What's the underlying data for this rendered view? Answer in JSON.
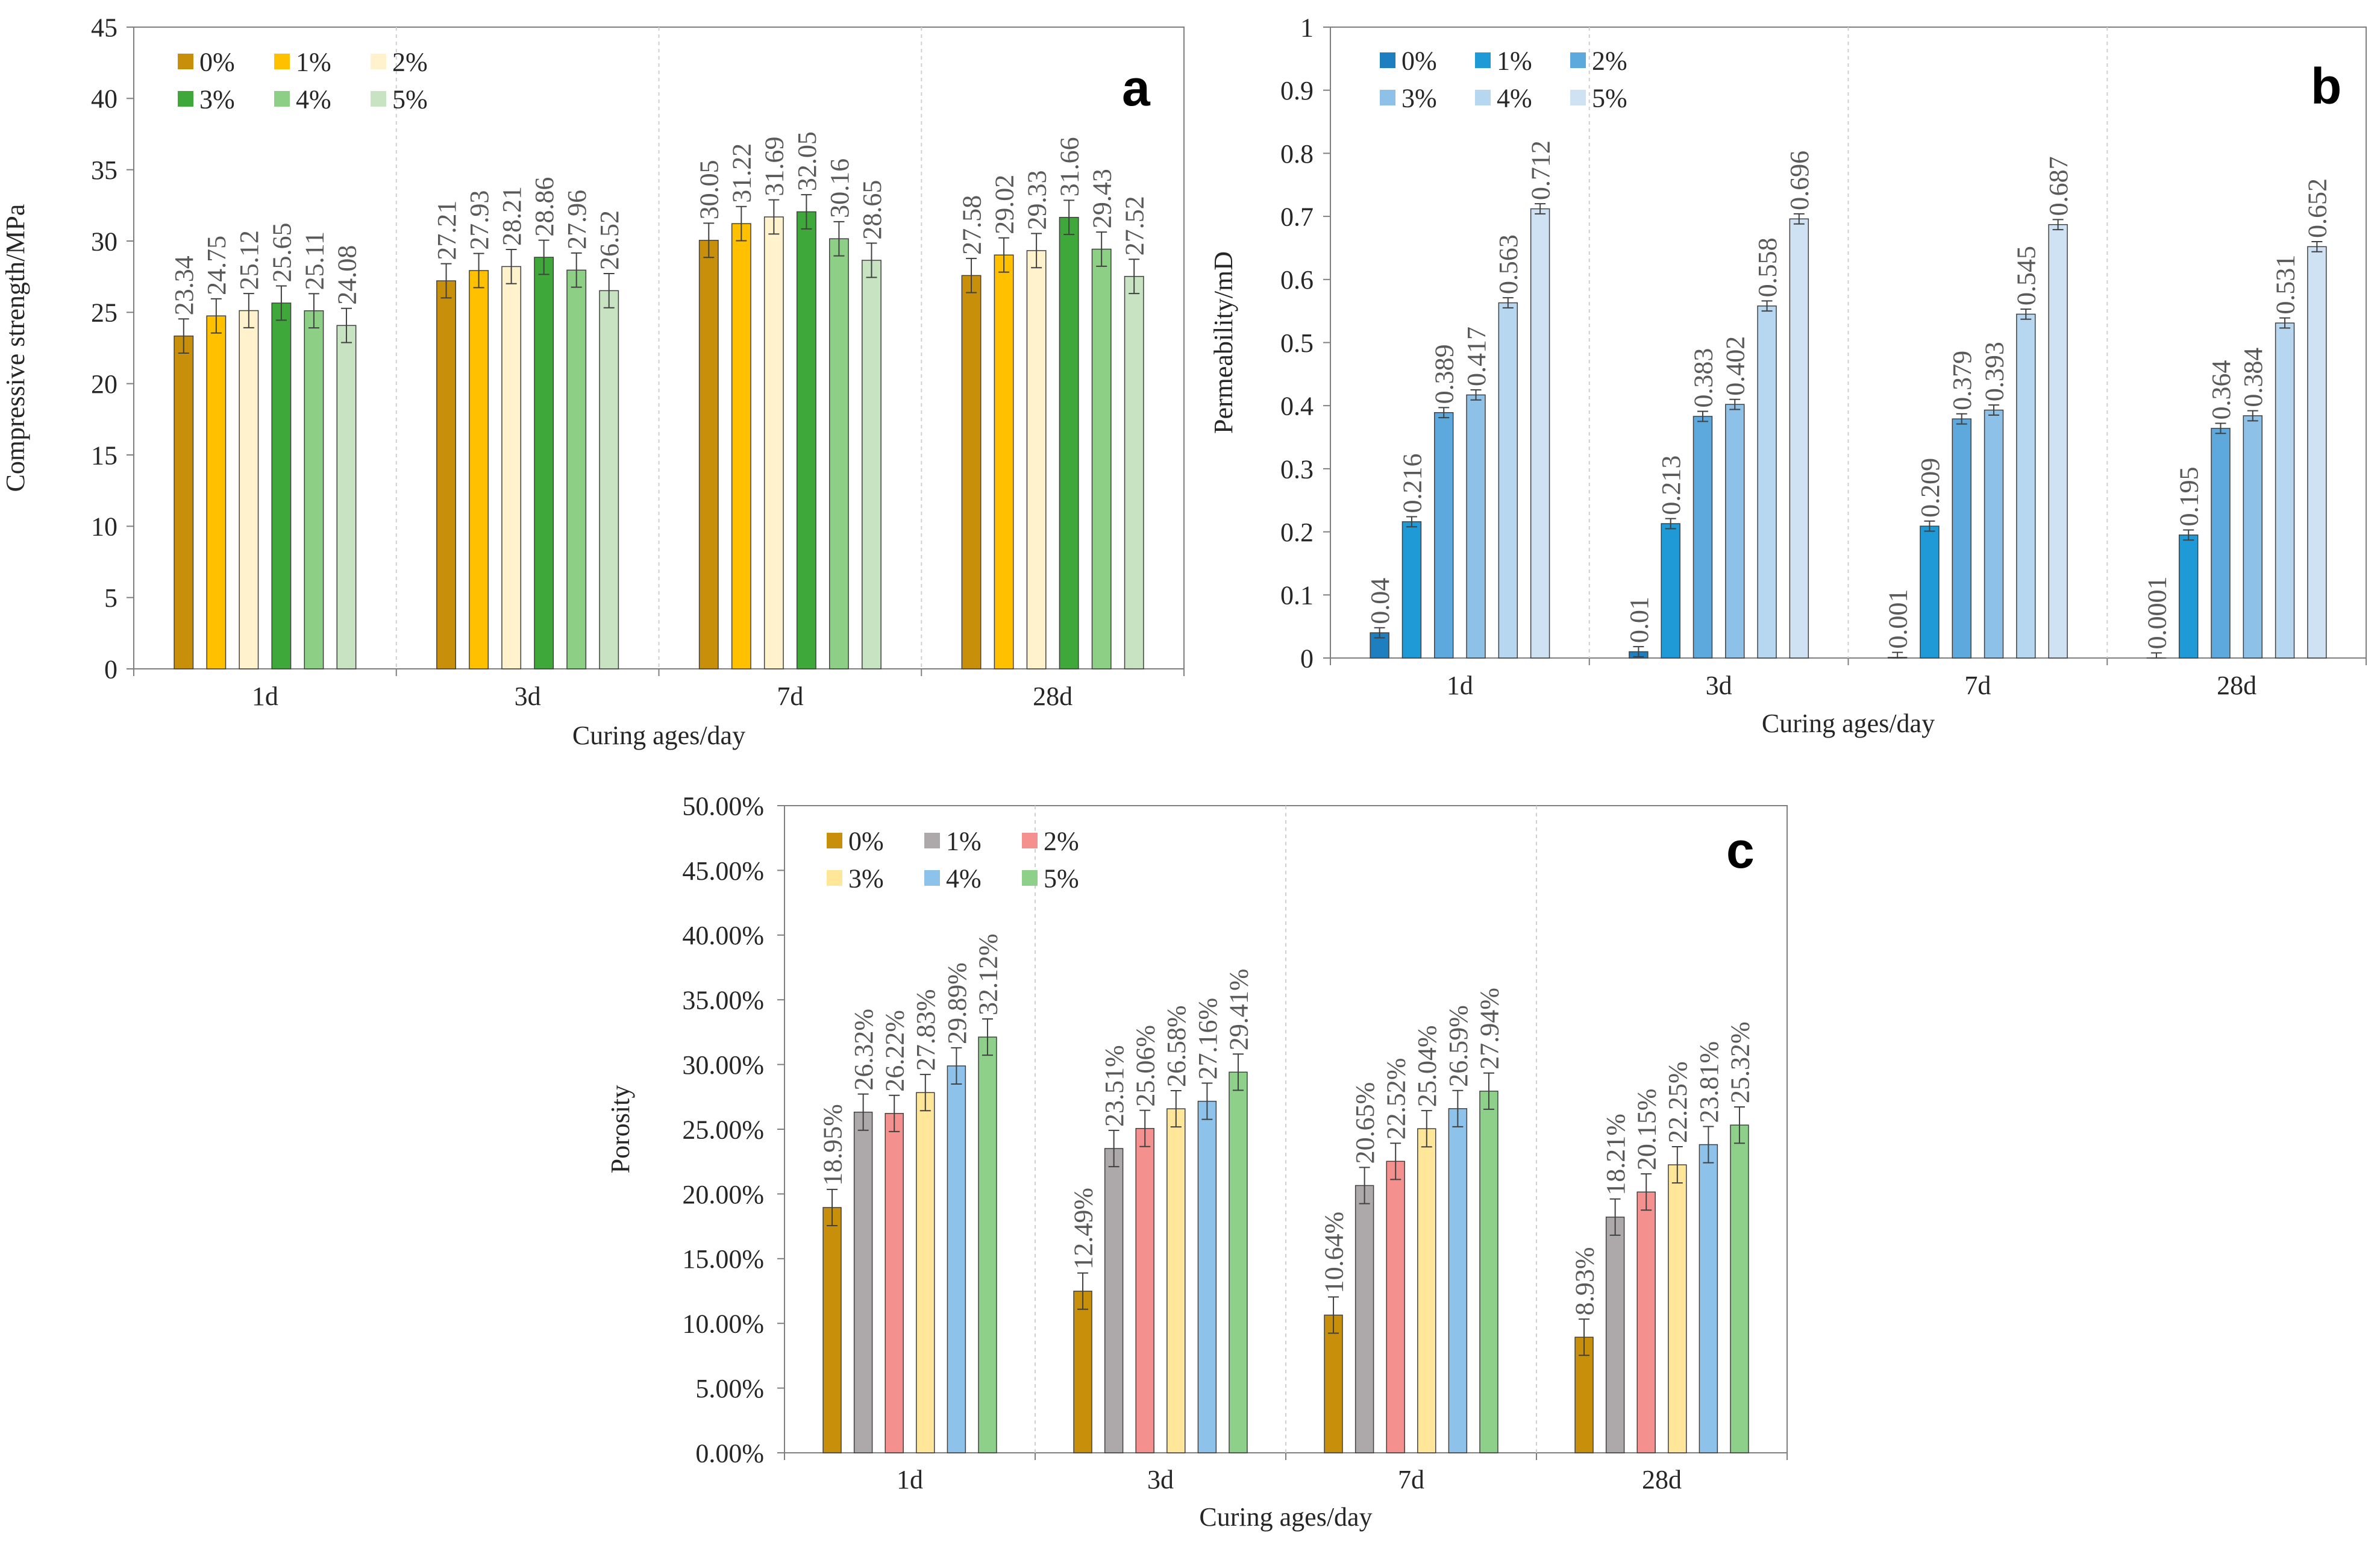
{
  "chart_data": [
    {
      "id": "a",
      "panel_letter": "a",
      "type": "bar",
      "ylabel": "Compressive strength/MPa",
      "xlabel": "Curing ages/day",
      "categories": [
        "1d",
        "3d",
        "7d",
        "28d"
      ],
      "ylim": [
        0,
        45
      ],
      "ytick_step": 5,
      "ytick_labels": [
        "0",
        "5",
        "10",
        "15",
        "20",
        "25",
        "30",
        "35",
        "40",
        "45"
      ],
      "legend_position": "top-left",
      "legend_columns": 3,
      "error_bar": 1.2,
      "series": [
        {
          "name": "0%",
          "color": "#C8900A",
          "values": [
            23.34,
            27.21,
            30.05,
            27.58
          ],
          "labels": [
            "23.34",
            "27.21",
            "30.05",
            "27.58"
          ]
        },
        {
          "name": "1%",
          "color": "#FFC000",
          "values": [
            24.75,
            27.93,
            31.22,
            29.02
          ],
          "labels": [
            "24.75",
            "27.93",
            "31.22",
            "29.02"
          ]
        },
        {
          "name": "2%",
          "color": "#FFF2CC",
          "values": [
            25.12,
            28.21,
            31.69,
            29.33
          ],
          "labels": [
            "25.12",
            "28.21",
            "31.69",
            "29.33"
          ]
        },
        {
          "name": "3%",
          "color": "#3FA83A",
          "values": [
            25.65,
            28.86,
            32.05,
            31.66
          ],
          "labels": [
            "25.65",
            "28.86",
            "32.05",
            "31.66"
          ]
        },
        {
          "name": "4%",
          "color": "#8ECF86",
          "values": [
            25.11,
            27.96,
            30.16,
            29.43
          ],
          "labels": [
            "25.11",
            "27.96",
            "30.16",
            "29.43"
          ]
        },
        {
          "name": "5%",
          "color": "#C7E3C2",
          "values": [
            24.08,
            26.52,
            28.65,
            27.52
          ],
          "labels": [
            "24.08",
            "26.52",
            "28.65",
            "27.52"
          ]
        }
      ]
    },
    {
      "id": "b",
      "panel_letter": "b",
      "type": "bar",
      "ylabel": "Permeability/mD",
      "xlabel": "Curing ages/day",
      "categories": [
        "1d",
        "3d",
        "7d",
        "28d"
      ],
      "ylim": [
        0,
        1
      ],
      "ytick_step": 0.1,
      "ytick_labels": [
        "0",
        "0.1",
        "0.2",
        "0.3",
        "0.4",
        "0.5",
        "0.6",
        "0.7",
        "0.8",
        "0.9",
        "1"
      ],
      "legend_position": "top-left",
      "legend_columns": 3,
      "error_bar": 0.008,
      "series": [
        {
          "name": "0%",
          "color": "#1E7FC0",
          "values": [
            0.04,
            0.01,
            0.001,
            0.0001
          ],
          "labels": [
            "0.04",
            "0.01",
            "0.001",
            "0.0001"
          ]
        },
        {
          "name": "1%",
          "color": "#1F9AD6",
          "values": [
            0.216,
            0.213,
            0.209,
            0.195
          ],
          "labels": [
            "0.216",
            "0.213",
            "0.209",
            "0.195"
          ]
        },
        {
          "name": "2%",
          "color": "#5DA9DE",
          "values": [
            0.389,
            0.383,
            0.379,
            0.364
          ],
          "labels": [
            "0.389",
            "0.383",
            "0.379",
            "0.364"
          ]
        },
        {
          "name": "3%",
          "color": "#8EC1E8",
          "values": [
            0.417,
            0.402,
            0.393,
            0.384
          ],
          "labels": [
            "0.417",
            "0.402",
            "0.393",
            "0.384"
          ]
        },
        {
          "name": "4%",
          "color": "#B7D6F0",
          "values": [
            0.563,
            0.558,
            0.545,
            0.531
          ],
          "labels": [
            "0.563",
            "0.558",
            "0.545",
            "0.531"
          ]
        },
        {
          "name": "5%",
          "color": "#CFE2F4",
          "values": [
            0.712,
            0.696,
            0.687,
            0.652
          ],
          "labels": [
            "0.712",
            "0.696",
            "0.687",
            "0.652"
          ]
        }
      ]
    },
    {
      "id": "c",
      "panel_letter": "c",
      "type": "bar",
      "ylabel": "Porosity",
      "xlabel": "Curing ages/day",
      "categories": [
        "1d",
        "3d",
        "7d",
        "28d"
      ],
      "ylim": [
        0,
        50
      ],
      "ytick_step": 5,
      "ytick_labels": [
        "0.00%",
        "5.00%",
        "10.00%",
        "15.00%",
        "20.00%",
        "25.00%",
        "30.00%",
        "35.00%",
        "40.00%",
        "45.00%",
        "50.00%"
      ],
      "legend_position": "top-left",
      "legend_columns": 3,
      "error_bar": 1.4,
      "series": [
        {
          "name": "0%",
          "color": "#C8900A",
          "values": [
            18.95,
            12.49,
            10.64,
            8.93
          ],
          "labels": [
            "18.95%",
            "12.49%",
            "10.64%",
            "8.93%"
          ]
        },
        {
          "name": "1%",
          "color": "#ADA9AA",
          "values": [
            26.32,
            23.51,
            20.65,
            18.21
          ],
          "labels": [
            "26.32%",
            "23.51%",
            "20.65%",
            "18.21%"
          ]
        },
        {
          "name": "2%",
          "color": "#F4908E",
          "values": [
            26.22,
            25.06,
            22.52,
            20.15
          ],
          "labels": [
            "26.22%",
            "25.06%",
            "22.52%",
            "20.15%"
          ]
        },
        {
          "name": "3%",
          "color": "#FFE699",
          "values": [
            27.83,
            26.58,
            25.04,
            22.25
          ],
          "labels": [
            "27.83%",
            "26.58%",
            "25.04%",
            "22.25%"
          ]
        },
        {
          "name": "4%",
          "color": "#8DC3EA",
          "values": [
            29.89,
            27.16,
            26.59,
            23.81
          ],
          "labels": [
            "29.89%",
            "27.16%",
            "26.59%",
            "23.81%"
          ]
        },
        {
          "name": "5%",
          "color": "#8ED08A",
          "values": [
            32.12,
            29.41,
            27.94,
            25.32
          ],
          "labels": [
            "32.12%",
            "29.41%",
            "27.94%",
            "25.32%"
          ]
        }
      ]
    }
  ]
}
